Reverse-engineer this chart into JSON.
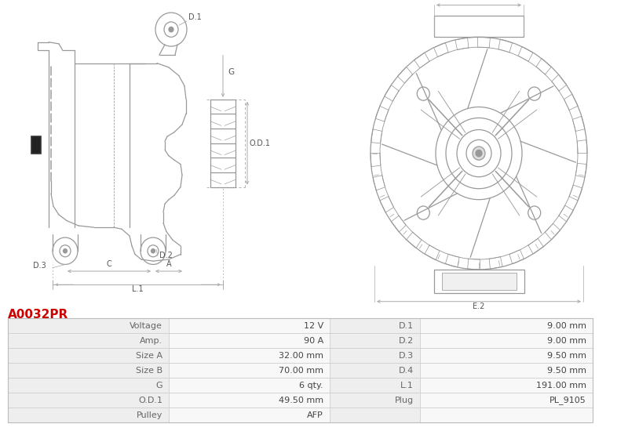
{
  "title": "A0032PR",
  "title_color": "#cc0000",
  "bg_color": "#ffffff",
  "table_rows": [
    [
      "Voltage",
      "12 V",
      "D.1",
      "9.00 mm"
    ],
    [
      "Amp.",
      "90 A",
      "D.2",
      "9.00 mm"
    ],
    [
      "Size A",
      "32.00 mm",
      "D.3",
      "9.50 mm"
    ],
    [
      "Size B",
      "70.00 mm",
      "D.4",
      "9.50 mm"
    ],
    [
      "G",
      "6 qty.",
      "L.1",
      "191.00 mm"
    ],
    [
      "O.D.1",
      "49.50 mm",
      "Plug",
      "PL_9105"
    ],
    [
      "Pulley",
      "AFP",
      "",
      ""
    ]
  ],
  "lc": "#999999",
  "lc_dim": "#aaaaaa",
  "bg_color_table_odd": "#eeeeee",
  "bg_color_table_even": "#f8f8f8",
  "border_color": "#cccccc",
  "text_color": "#666666",
  "value_color": "#444444"
}
